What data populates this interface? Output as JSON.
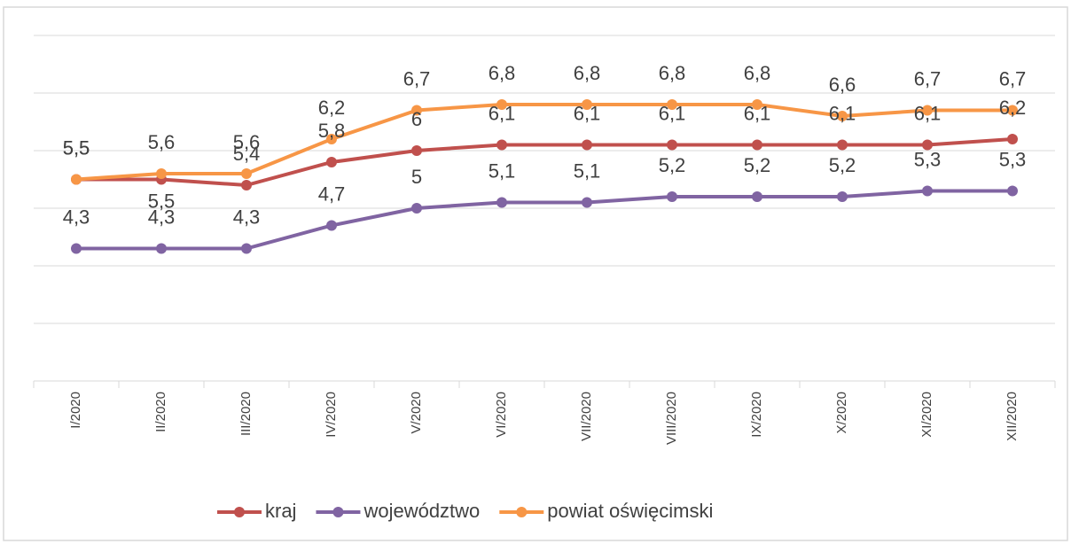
{
  "chart_data": {
    "type": "line",
    "categories": [
      "I/2020",
      "II/2020",
      "III/2020",
      "IV/2020",
      "V/2020",
      "VI/2020",
      "VII/2020",
      "VIII/2020",
      "IX/2020",
      "X/2020",
      "XI/2020",
      "XII/2020"
    ],
    "series": [
      {
        "name": "kraj",
        "color": "#c0504d",
        "values": [
          5.5,
          5.5,
          5.4,
          5.8,
          6,
          6.1,
          6.1,
          6.1,
          6.1,
          6.1,
          6.1,
          6.2
        ],
        "value_labels": [
          "5,5",
          "5,5",
          "5,4",
          "5,8",
          "6",
          "6,1",
          "6,1",
          "6,1",
          "6,1",
          "6,1",
          "6,1",
          "6,2"
        ]
      },
      {
        "name": "województwo",
        "color": "#8064a2",
        "values": [
          4.3,
          4.3,
          4.3,
          4.7,
          5,
          5.1,
          5.1,
          5.2,
          5.2,
          5.2,
          5.3,
          5.3
        ],
        "value_labels": [
          "4,3",
          "4,3",
          "4,3",
          "4,7",
          "5",
          "5,1",
          "5,1",
          "5,2",
          "5,2",
          "5,2",
          "5,3",
          "5,3"
        ]
      },
      {
        "name": "powiat oświęcimski",
        "color": "#f79646",
        "values": [
          5.5,
          5.6,
          5.6,
          6.2,
          6.7,
          6.8,
          6.8,
          6.8,
          6.8,
          6.6,
          6.7,
          6.7
        ],
        "value_labels": [
          "5,5",
          "5,6",
          "5,6",
          "6,2",
          "6,7",
          "6,8",
          "6,8",
          "6,8",
          "6,8",
          "6,6",
          "6,7",
          "6,7"
        ]
      }
    ],
    "ylim": [
      2,
      8
    ],
    "yticks": [
      2,
      3,
      4,
      5,
      6,
      7,
      8
    ],
    "grid": true,
    "legend": "bottom"
  }
}
